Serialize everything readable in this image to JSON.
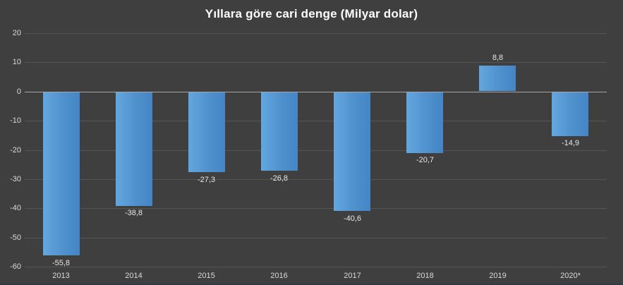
{
  "title": "Yıllara göre cari denge (Milyar dolar)",
  "colors": {
    "background": "#3F3F3F",
    "bar_light": "#63A7DF",
    "bar_dark": "#4585C6",
    "gridline": "#555555",
    "zero_line": "#A6A6A6",
    "text": "#D9D9D9",
    "title_text": "#FFFFFF"
  },
  "chart_data": {
    "type": "bar",
    "title": "Yıllara göre cari denge (Milyar dolar)",
    "categories": [
      "2013",
      "2014",
      "2015",
      "2016",
      "2017",
      "2018",
      "2019",
      "2020*"
    ],
    "values": [
      -55.8,
      -38.8,
      -27.3,
      -26.8,
      -40.6,
      -20.7,
      8.8,
      -14.9
    ],
    "labels": [
      "-55,8",
      "-38,8",
      "-27,3",
      "-26,8",
      "-40,6",
      "-20,7",
      "8,8",
      "-14,9"
    ],
    "xlabel": "",
    "ylabel": "",
    "ylim": [
      -60,
      20
    ],
    "yticks": [
      20,
      10,
      0,
      -10,
      -20,
      -30,
      -40,
      -50,
      -60
    ],
    "grid": true,
    "legend": false
  }
}
